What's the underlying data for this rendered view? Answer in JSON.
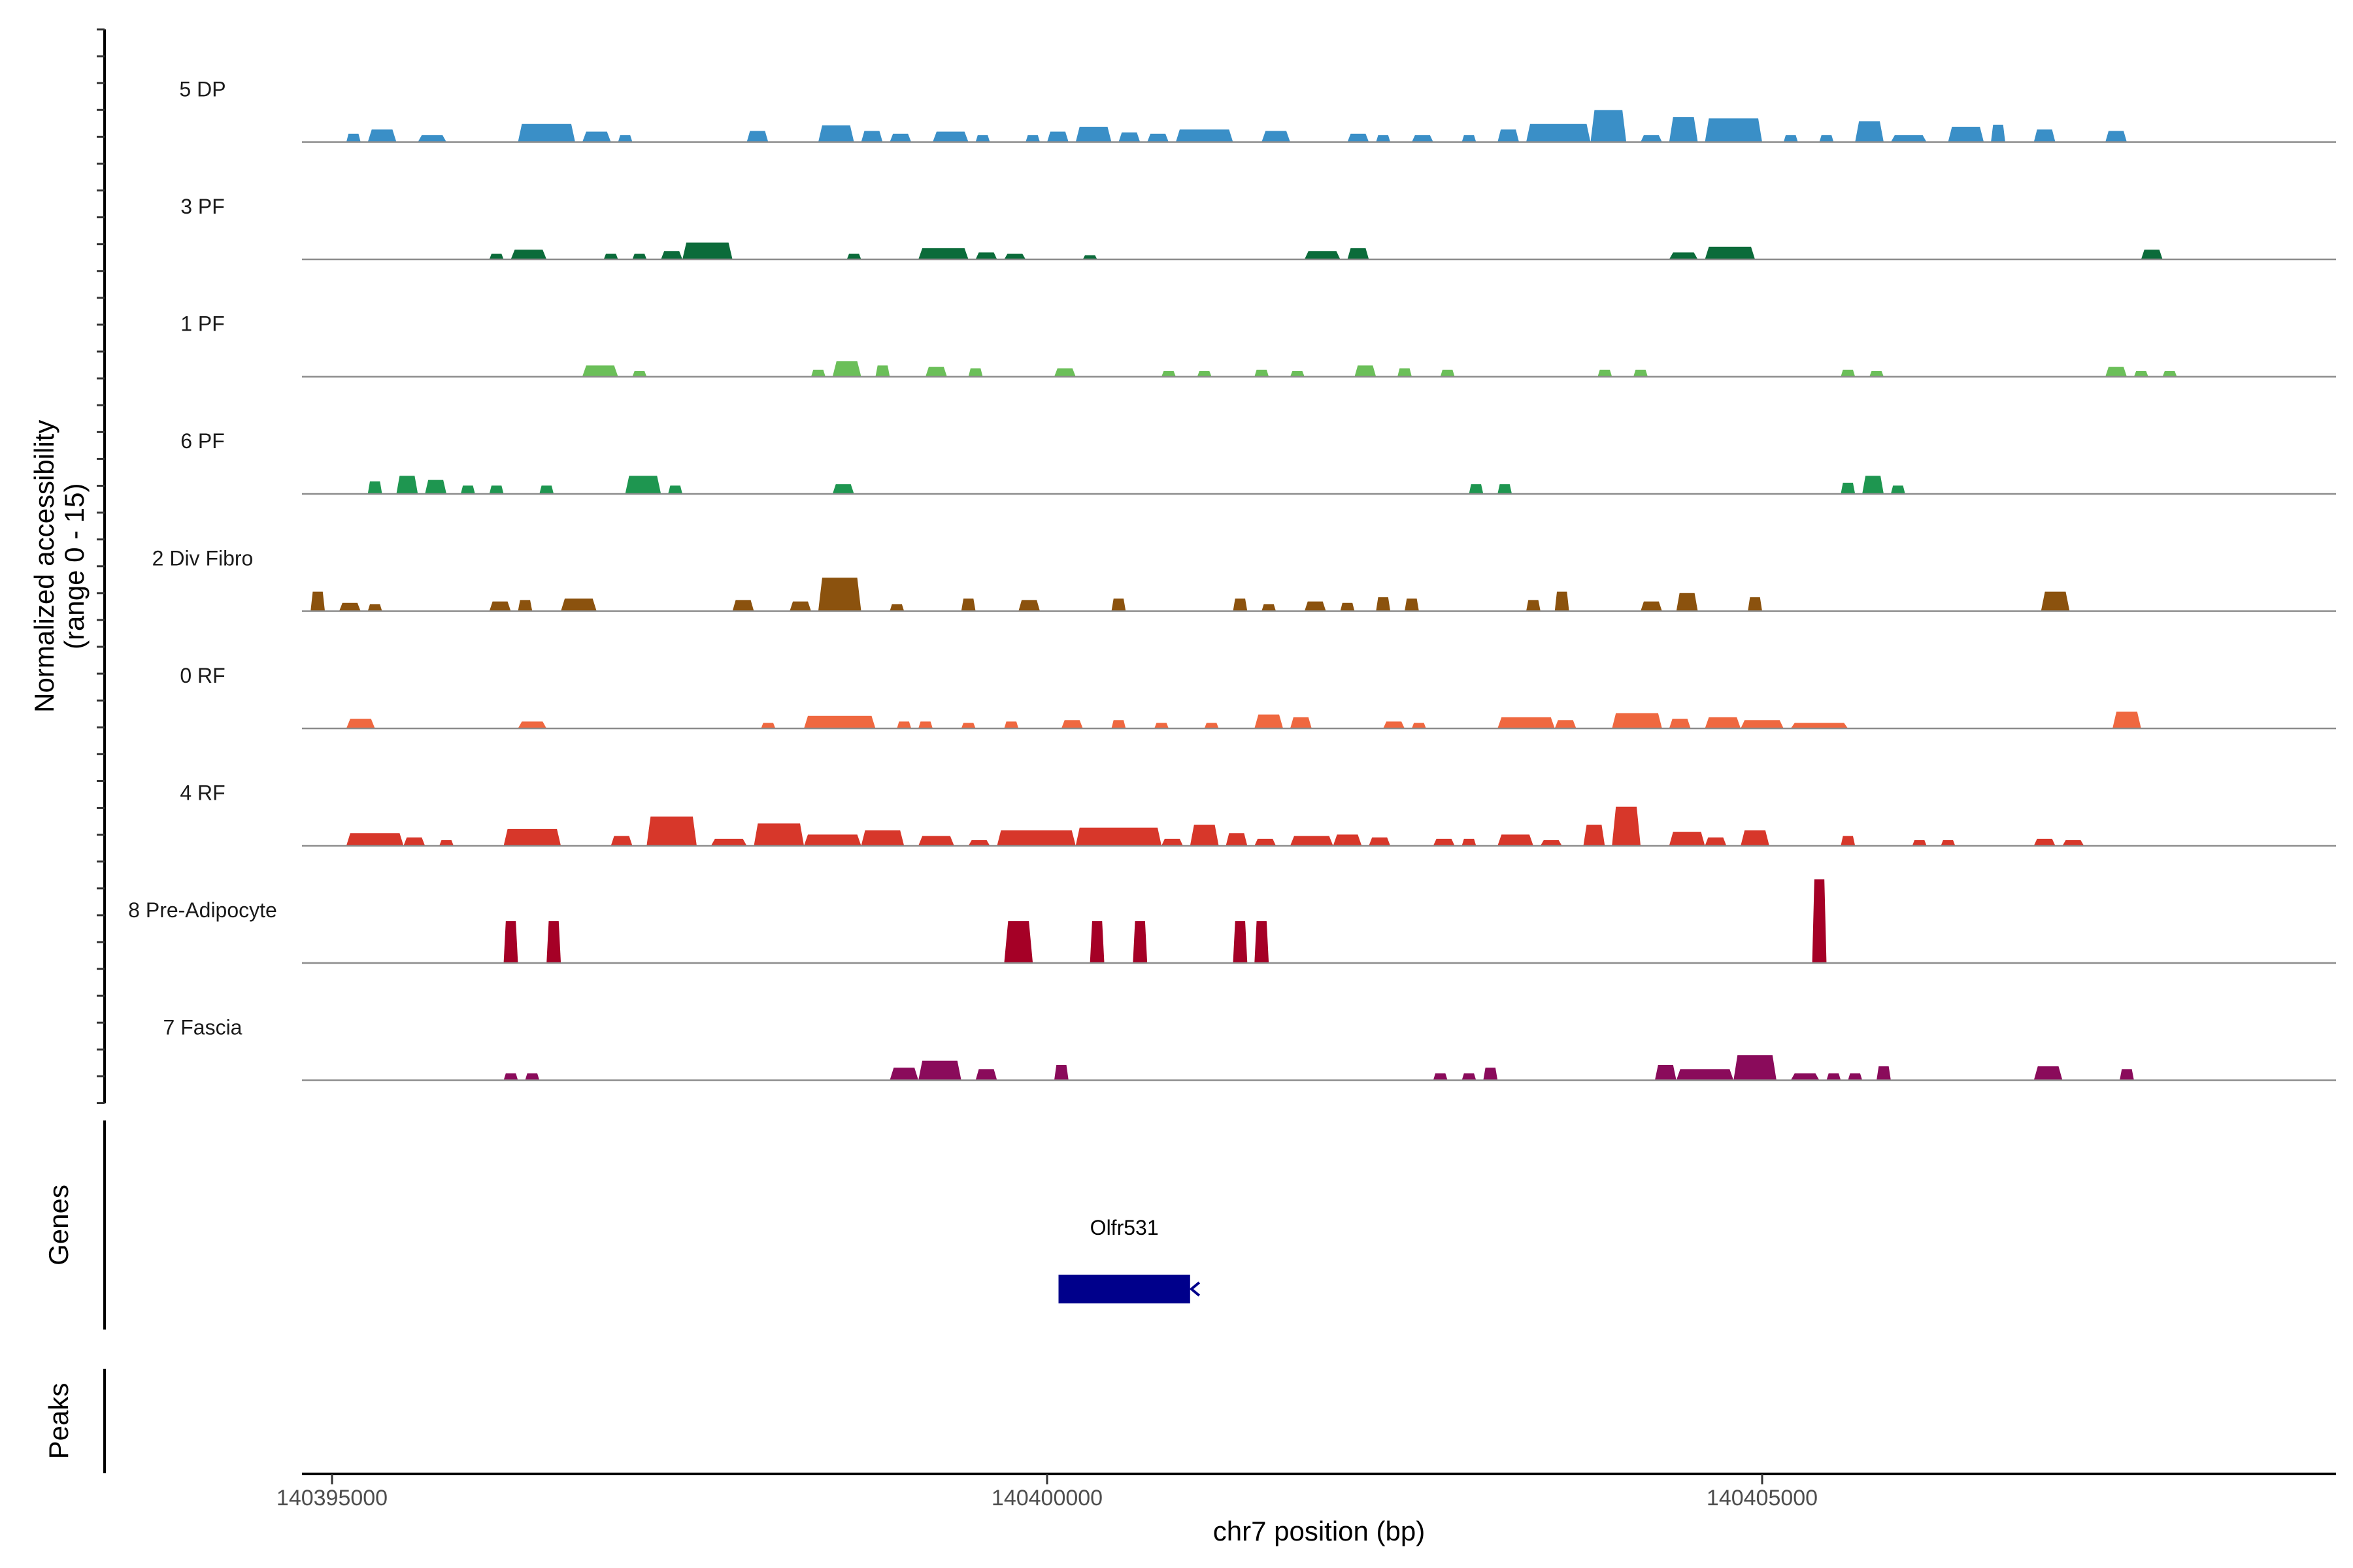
{
  "chart_data": {
    "type": "area",
    "title": "",
    "xlabel": "chr7 position (bp)",
    "ylabel_line1": "Normalized accessibility",
    "ylabel_line2": "(range 0 - 15)",
    "y_range": [
      0,
      15
    ],
    "x_range": [
      140394800,
      140409000
    ],
    "x_ticks": [
      140395000,
      140400000,
      140405000
    ],
    "x_tick_labels": [
      "140395000",
      "140400000",
      "140405000"
    ],
    "tracks": [
      {
        "name": "5 DP",
        "color": "#3a8fc7",
        "peaks": [
          [
            140395100,
            140395200,
            1.2
          ],
          [
            140395250,
            140395450,
            1.8
          ],
          [
            140395600,
            140395800,
            1.0
          ],
          [
            140396300,
            140396700,
            2.6
          ],
          [
            140396750,
            140396950,
            1.5
          ],
          [
            140397000,
            140397100,
            1.0
          ],
          [
            140397900,
            140398050,
            1.6
          ],
          [
            140398400,
            140398650,
            2.4
          ],
          [
            140398700,
            140398850,
            1.6
          ],
          [
            140398900,
            140399050,
            1.2
          ],
          [
            140399200,
            140399450,
            1.5
          ],
          [
            140399500,
            140399600,
            1.0
          ],
          [
            140399850,
            140399950,
            1.0
          ],
          [
            140400000,
            140400150,
            1.5
          ],
          [
            140400200,
            140400450,
            2.2
          ],
          [
            140400500,
            140400650,
            1.4
          ],
          [
            140400700,
            140400850,
            1.2
          ],
          [
            140400900,
            140401300,
            1.8
          ],
          [
            140401500,
            140401700,
            1.6
          ],
          [
            140402100,
            140402250,
            1.2
          ],
          [
            140402300,
            140402400,
            1.0
          ],
          [
            140402550,
            140402700,
            1.0
          ],
          [
            140402900,
            140403000,
            1.0
          ],
          [
            140403150,
            140403300,
            1.8
          ],
          [
            140403350,
            140403800,
            2.6
          ],
          [
            140403800,
            140404050,
            4.6
          ],
          [
            140404150,
            140404300,
            1.0
          ],
          [
            140404350,
            140404550,
            3.6
          ],
          [
            140404600,
            140405000,
            3.4
          ],
          [
            140405150,
            140405250,
            1.0
          ],
          [
            140405400,
            140405500,
            1.0
          ],
          [
            140405650,
            140405850,
            3.0
          ],
          [
            140405900,
            140406150,
            1.0
          ],
          [
            140406300,
            140406550,
            2.2
          ],
          [
            140406600,
            140406700,
            2.5
          ],
          [
            140406900,
            140407050,
            1.8
          ],
          [
            140407400,
            140407550,
            1.6
          ]
        ]
      },
      {
        "name": "3 PF",
        "color": "#0b6b3a",
        "peaks": [
          [
            140396100,
            140396200,
            0.8
          ],
          [
            140396250,
            140396500,
            1.4
          ],
          [
            140396900,
            140397000,
            0.8
          ],
          [
            140397100,
            140397200,
            0.8
          ],
          [
            140397300,
            140397450,
            1.2
          ],
          [
            140397450,
            140397800,
            2.4
          ],
          [
            140398600,
            140398700,
            0.8
          ],
          [
            140399100,
            140399450,
            1.6
          ],
          [
            140399500,
            140399650,
            1.0
          ],
          [
            140399700,
            140399850,
            0.8
          ],
          [
            140400250,
            140400350,
            0.6
          ],
          [
            140401800,
            140402050,
            1.2
          ],
          [
            140402100,
            140402250,
            1.6
          ],
          [
            140404350,
            140404550,
            1.0
          ],
          [
            140404600,
            140404950,
            1.8
          ],
          [
            140407650,
            140407800,
            1.4
          ]
        ]
      },
      {
        "name": "1 PF",
        "color": "#6bbf59",
        "peaks": [
          [
            140396750,
            140397000,
            1.6
          ],
          [
            140397100,
            140397200,
            0.8
          ],
          [
            140398350,
            140398450,
            1.0
          ],
          [
            140398500,
            140398700,
            2.2
          ],
          [
            140398800,
            140398900,
            1.6
          ],
          [
            140399150,
            140399300,
            1.4
          ],
          [
            140399450,
            140399550,
            1.2
          ],
          [
            140400050,
            140400200,
            1.2
          ],
          [
            140400800,
            140400900,
            0.8
          ],
          [
            140401050,
            140401150,
            0.8
          ],
          [
            140401450,
            140401550,
            1.0
          ],
          [
            140401700,
            140401800,
            0.8
          ],
          [
            140402150,
            140402300,
            1.6
          ],
          [
            140402450,
            140402550,
            1.2
          ],
          [
            140402750,
            140402850,
            1.0
          ],
          [
            140403850,
            140403950,
            1.0
          ],
          [
            140404100,
            140404200,
            1.0
          ],
          [
            140405550,
            140405650,
            1.0
          ],
          [
            140405750,
            140405850,
            0.8
          ],
          [
            140407400,
            140407550,
            1.4
          ],
          [
            140407600,
            140407700,
            0.8
          ],
          [
            140407800,
            140407900,
            0.8
          ]
        ]
      },
      {
        "name": "6 PF",
        "color": "#1e9650",
        "peaks": [
          [
            140395250,
            140395350,
            1.8
          ],
          [
            140395450,
            140395600,
            2.6
          ],
          [
            140395650,
            140395800,
            2.0
          ],
          [
            140395900,
            140396000,
            1.2
          ],
          [
            140396100,
            140396200,
            1.2
          ],
          [
            140396450,
            140396550,
            1.2
          ],
          [
            140397050,
            140397300,
            2.6
          ],
          [
            140397350,
            140397450,
            1.2
          ],
          [
            140398500,
            140398650,
            1.4
          ],
          [
            140402950,
            140403050,
            1.4
          ],
          [
            140403150,
            140403250,
            1.4
          ],
          [
            140405550,
            140405650,
            1.6
          ],
          [
            140405700,
            140405850,
            2.6
          ],
          [
            140405900,
            140406000,
            1.2
          ]
        ]
      },
      {
        "name": "2 Div Fibro",
        "color": "#8b520e",
        "peaks": [
          [
            140394850,
            140394950,
            2.8
          ],
          [
            140395050,
            140395200,
            1.2
          ],
          [
            140395250,
            140395350,
            1.0
          ],
          [
            140396100,
            140396250,
            1.4
          ],
          [
            140396300,
            140396400,
            1.6
          ],
          [
            140396600,
            140396850,
            1.8
          ],
          [
            140397800,
            140397950,
            1.6
          ],
          [
            140398200,
            140398350,
            1.4
          ],
          [
            140398400,
            140398700,
            4.8
          ],
          [
            140398900,
            140399000,
            1.0
          ],
          [
            140399400,
            140399500,
            1.8
          ],
          [
            140399800,
            140399950,
            1.6
          ],
          [
            140400450,
            140400550,
            1.8
          ],
          [
            140401300,
            140401400,
            1.8
          ],
          [
            140401500,
            140401600,
            1.0
          ],
          [
            140401800,
            140401950,
            1.4
          ],
          [
            140402050,
            140402150,
            1.2
          ],
          [
            140402300,
            140402400,
            2.0
          ],
          [
            140402500,
            140402600,
            1.8
          ],
          [
            140403350,
            140403450,
            1.6
          ],
          [
            140403550,
            140403650,
            2.8
          ],
          [
            140404150,
            140404300,
            1.4
          ],
          [
            140404400,
            140404550,
            2.6
          ],
          [
            140404900,
            140405000,
            2.0
          ],
          [
            140406950,
            140407150,
            2.8
          ]
        ]
      },
      {
        "name": "0 RF",
        "color": "#ef6840",
        "peaks": [
          [
            140395100,
            140395300,
            1.4
          ],
          [
            140396300,
            140396500,
            1.0
          ],
          [
            140398000,
            140398100,
            0.8
          ],
          [
            140398300,
            140398800,
            1.8
          ],
          [
            140398950,
            140399050,
            1.0
          ],
          [
            140399100,
            140399200,
            1.0
          ],
          [
            140399400,
            140399500,
            0.8
          ],
          [
            140399700,
            140399800,
            1.0
          ],
          [
            140400100,
            140400250,
            1.2
          ],
          [
            140400450,
            140400550,
            1.2
          ],
          [
            140400750,
            140400850,
            0.8
          ],
          [
            140401100,
            140401200,
            0.8
          ],
          [
            140401450,
            140401650,
            2.0
          ],
          [
            140401700,
            140401850,
            1.6
          ],
          [
            140402350,
            140402500,
            1.0
          ],
          [
            140402550,
            140402650,
            0.8
          ],
          [
            140403150,
            140403550,
            1.6
          ],
          [
            140403550,
            140403700,
            1.2
          ],
          [
            140403950,
            140404300,
            2.2
          ],
          [
            140404350,
            140404500,
            1.4
          ],
          [
            140404600,
            140404850,
            1.6
          ],
          [
            140404850,
            140405150,
            1.2
          ],
          [
            140405200,
            140405600,
            0.8
          ],
          [
            140407450,
            140407650,
            2.4
          ]
        ]
      },
      {
        "name": "4 RF",
        "color": "#d7372a",
        "peaks": [
          [
            140395100,
            140395500,
            1.8
          ],
          [
            140395500,
            140395650,
            1.2
          ],
          [
            140395750,
            140395850,
            0.8
          ],
          [
            140396200,
            140396600,
            2.4
          ],
          [
            140396950,
            140397100,
            1.4
          ],
          [
            140397200,
            140397550,
            4.2
          ],
          [
            140397650,
            140397900,
            1.0
          ],
          [
            140397950,
            140398300,
            3.2
          ],
          [
            140398300,
            140398700,
            1.6
          ],
          [
            140398700,
            140399000,
            2.2
          ],
          [
            140399100,
            140399350,
            1.4
          ],
          [
            140399450,
            140399600,
            0.8
          ],
          [
            140399650,
            140400200,
            2.2
          ],
          [
            140400200,
            140400800,
            2.6
          ],
          [
            140400800,
            140400950,
            1.0
          ],
          [
            140401000,
            140401200,
            3.0
          ],
          [
            140401250,
            140401400,
            1.8
          ],
          [
            140401450,
            140401600,
            1.0
          ],
          [
            140401700,
            140402000,
            1.4
          ],
          [
            140402000,
            140402200,
            1.6
          ],
          [
            140402250,
            140402400,
            1.2
          ],
          [
            140402700,
            140402850,
            1.0
          ],
          [
            140402900,
            140403000,
            1.0
          ],
          [
            140403150,
            140403400,
            1.6
          ],
          [
            140403450,
            140403600,
            0.8
          ],
          [
            140403750,
            140403900,
            3.0
          ],
          [
            140403950,
            140404150,
            5.6
          ],
          [
            140404350,
            140404600,
            2.0
          ],
          [
            140404600,
            140404750,
            1.2
          ],
          [
            140404850,
            140405050,
            2.2
          ],
          [
            140405550,
            140405650,
            1.4
          ],
          [
            140406050,
            140406150,
            0.8
          ],
          [
            140406250,
            140406350,
            0.8
          ],
          [
            140406900,
            140407050,
            1.0
          ],
          [
            140407100,
            140407250,
            0.8
          ]
        ]
      },
      {
        "name": "8 Pre-Adipocyte",
        "color": "#a50026",
        "peaks": [
          [
            140396200,
            140396300,
            6.0
          ],
          [
            140396500,
            140396600,
            6.0
          ],
          [
            140399700,
            140399900,
            6.0
          ],
          [
            140400300,
            140400400,
            6.0
          ],
          [
            140400600,
            140400700,
            6.0
          ],
          [
            140401300,
            140401400,
            6.0
          ],
          [
            140401450,
            140401550,
            6.0
          ],
          [
            140405350,
            140405450,
            12.0
          ]
        ]
      },
      {
        "name": "7 Fascia",
        "color": "#8a0b5b",
        "peaks": [
          [
            140396200,
            140396300,
            1.0
          ],
          [
            140396350,
            140396450,
            1.0
          ],
          [
            140398900,
            140399100,
            1.8
          ],
          [
            140399100,
            140399400,
            2.8
          ],
          [
            140399500,
            140399650,
            1.6
          ],
          [
            140400050,
            140400150,
            2.2
          ],
          [
            140402700,
            140402800,
            1.0
          ],
          [
            140402900,
            140403000,
            1.0
          ],
          [
            140403050,
            140403150,
            1.8
          ],
          [
            140404250,
            140404400,
            2.2
          ],
          [
            140404400,
            140404800,
            1.6
          ],
          [
            140404800,
            140405100,
            3.6
          ],
          [
            140405200,
            140405400,
            1.0
          ],
          [
            140405450,
            140405550,
            1.0
          ],
          [
            140405600,
            140405700,
            1.0
          ],
          [
            140405800,
            140405900,
            2.0
          ],
          [
            140406900,
            140407100,
            2.0
          ],
          [
            140407500,
            140407600,
            1.6
          ]
        ]
      }
    ],
    "genes": [
      {
        "name": "Olfr531",
        "start": 140400080,
        "end": 140401000,
        "strand": "-",
        "color": "#00008b"
      }
    ],
    "genes_title": "Genes",
    "peaks_title": "Peaks",
    "peaks_data": []
  }
}
